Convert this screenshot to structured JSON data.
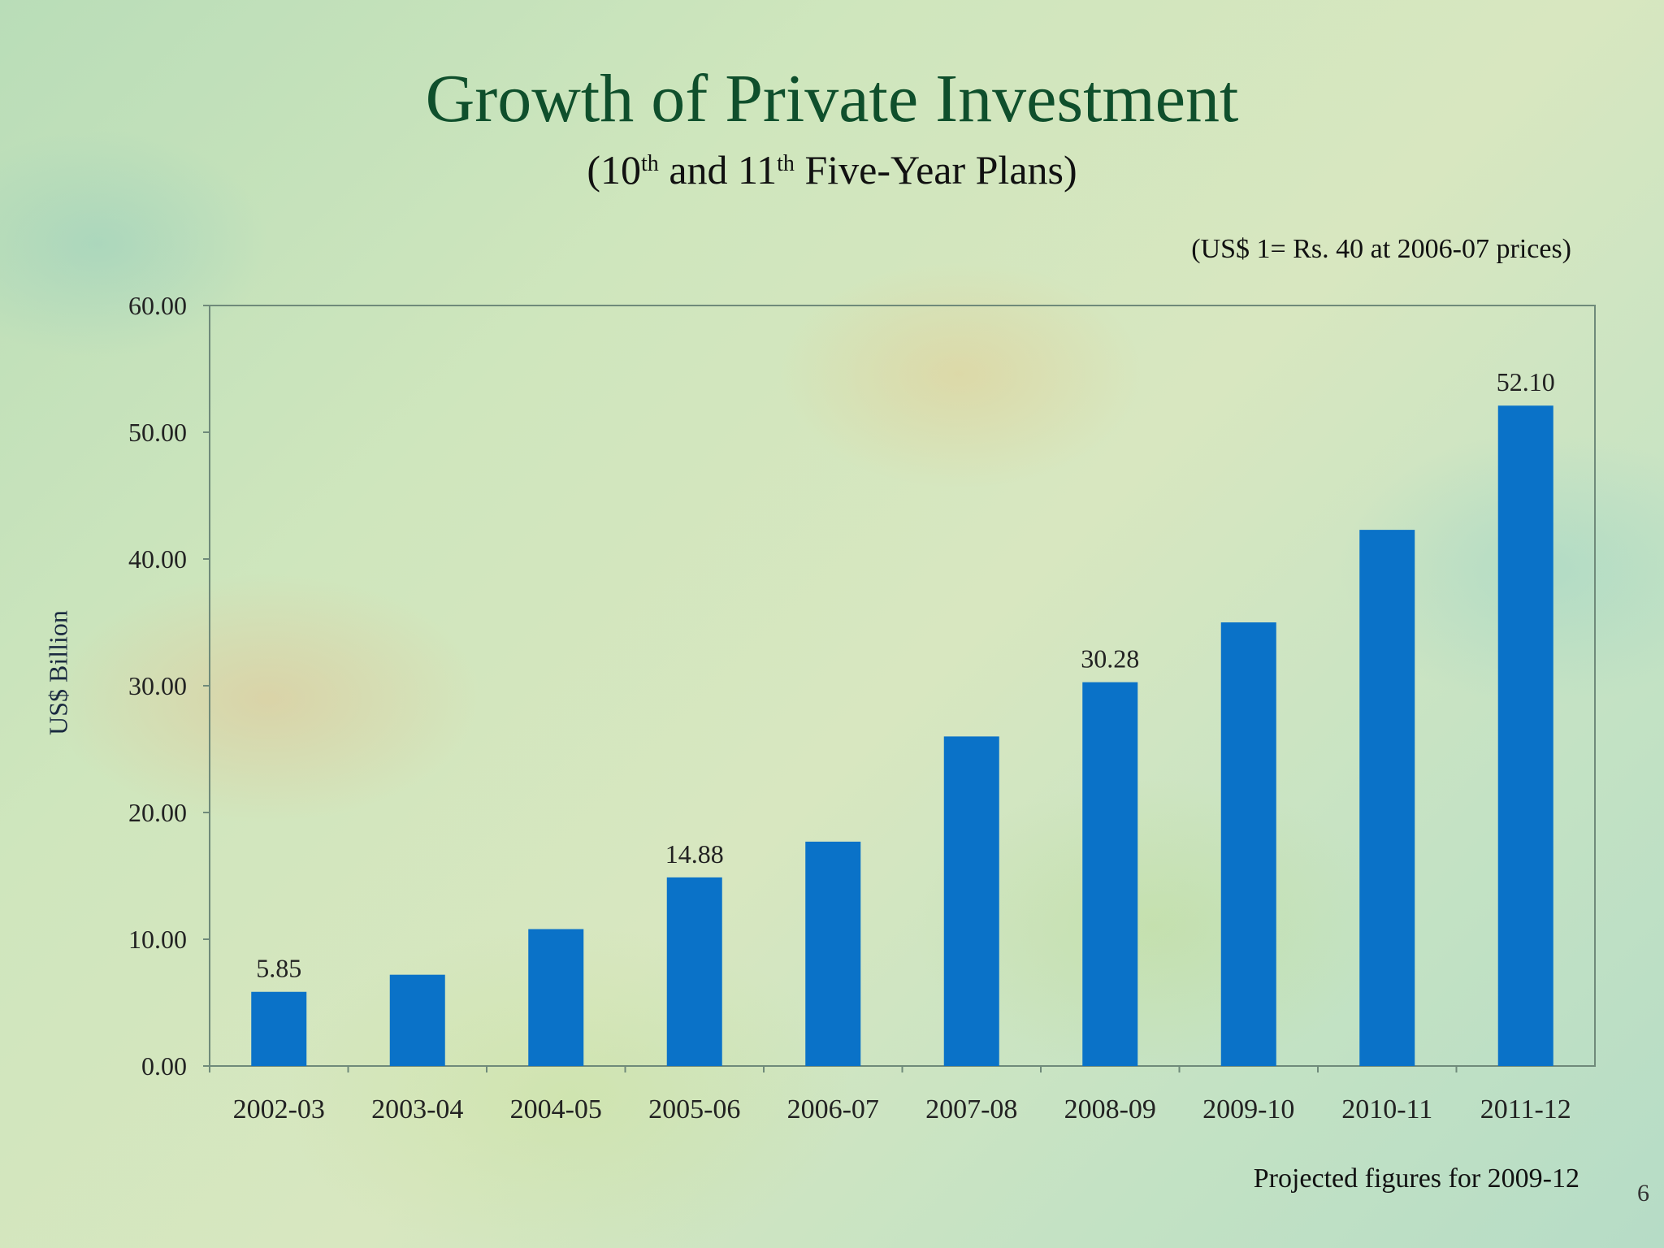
{
  "slide": {
    "title": "Growth of Private Investment",
    "subtitle_pre": "(10",
    "subtitle_sup1": "th",
    "subtitle_mid": " and 11",
    "subtitle_sup2": "th",
    "subtitle_post": " Five-Year Plans)",
    "note": "(US$ 1= Rs. 40 at 2006-07 prices)",
    "footnote": "Projected figures for 2009-12",
    "page_number": "6"
  },
  "chart_data": {
    "type": "bar",
    "title": "Growth of Private Investment",
    "xlabel": "",
    "ylabel": "US$ Billion",
    "ylim": [
      0,
      60
    ],
    "yticks": [
      "0.00",
      "10.00",
      "20.00",
      "30.00",
      "40.00",
      "50.00",
      "60.00"
    ],
    "categories": [
      "2002-03",
      "2003-04",
      "2004-05",
      "2005-06",
      "2006-07",
      "2007-08",
      "2008-09",
      "2009-10",
      "2010-11",
      "2011-12"
    ],
    "values": [
      5.85,
      7.2,
      10.8,
      14.88,
      17.7,
      26.0,
      30.28,
      35.0,
      42.3,
      52.1
    ],
    "data_labels": {
      "0": "5.85",
      "3": "14.88",
      "6": "30.28",
      "9": "52.10"
    },
    "bar_color": "#0a72c8",
    "grid": false
  }
}
